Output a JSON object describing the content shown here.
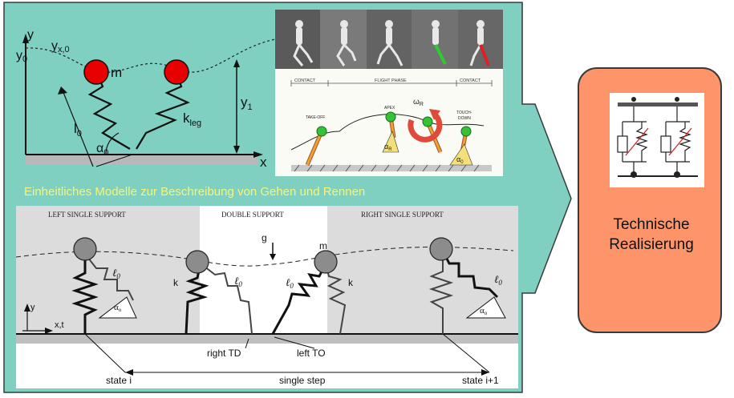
{
  "colors": {
    "panel_teal": "#7fd0c1",
    "tech_box": "#fd946a",
    "caption": "#f5f57a",
    "mass_red": "#e80000"
  },
  "caption": "Einheitliches Modelle zur Beschreibung von Gehen und Rennen",
  "top_left_model": {
    "axis_y": "y",
    "axis_x": "x",
    "y0": "y",
    "y0_sub": "0",
    "yx0": "y",
    "yx0_sub": "x,0",
    "mass": "m",
    "y1": "y",
    "y1_sub": "1",
    "l0": "l",
    "l0_sub": "0",
    "kleg": "k",
    "kleg_sub": "leg",
    "alpha0": "α",
    "alpha0_sub": "0"
  },
  "top_right_figure": {
    "contact_left": "CONTACT",
    "flight_phase": "FLIGHT PHASE",
    "contact_right": "CONTACT",
    "take_off": "TAKE-OFF",
    "apex": "APEX",
    "touch_down_1": "TOUCH-",
    "touch_down_2": "DOWN",
    "omega_r": "ω",
    "omega_r_sub": "R",
    "alpha_r": "α",
    "alpha_r_sub": "R",
    "alpha_0": "α",
    "alpha_0_sub": "0"
  },
  "gait_figure": {
    "left_single": "LEFT SINGLE SUPPORT",
    "double": "DOUBLE SUPPORT",
    "right_single": "RIGHT SINGLE SUPPORT",
    "gravity": "g",
    "mass": "m",
    "k": "k",
    "l0": "ℓ",
    "l0_sub": "0",
    "alpha": "α",
    "alpha_sub": "o",
    "axis_y": "y",
    "axis_x": "x,t",
    "right_td": "right TD",
    "left_to": "left TO",
    "state_i": "state i",
    "single_step": "single step",
    "state_i1": "state i+1"
  },
  "tech": {
    "label_line1": "Technische",
    "label_line2": "Realisierung"
  }
}
